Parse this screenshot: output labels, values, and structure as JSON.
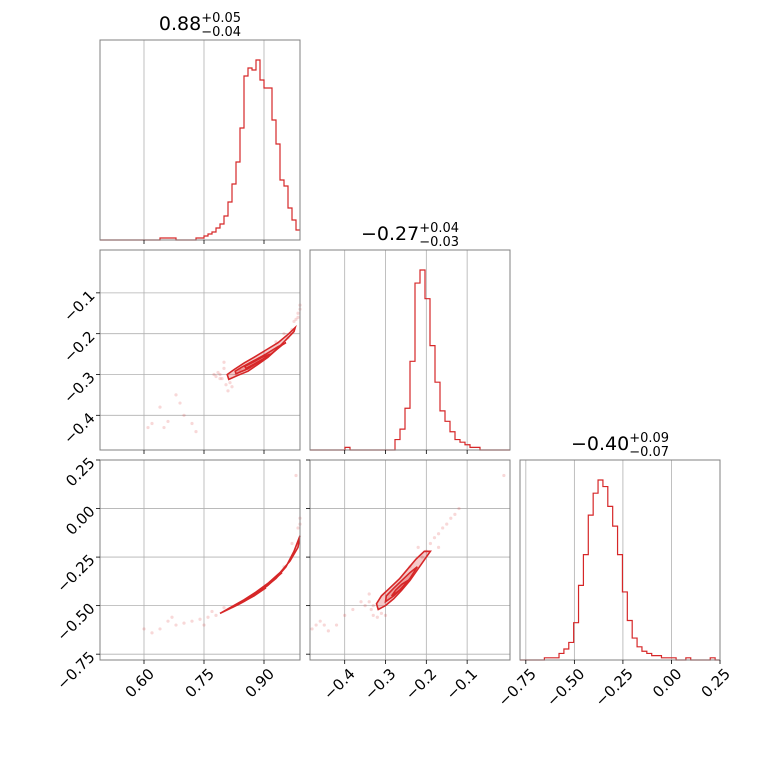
{
  "chart_data": {
    "type": "corner",
    "color": "#d62728",
    "parameters": [
      {
        "range": [
          0.49,
          0.99
        ],
        "ticks": [
          0.6,
          0.75,
          0.9
        ],
        "tick_labels": [
          "0.60",
          "0.75",
          "0.90"
        ],
        "summary": {
          "median": "0.88",
          "plus": "+0.05",
          "minus": "−0.04"
        },
        "hist_edges": [
          0.49,
          0.99
        ],
        "hist_values": [
          0,
          0,
          0,
          0,
          0,
          0,
          0,
          0,
          0,
          0,
          0,
          0,
          0,
          0,
          0,
          1,
          1,
          1,
          1,
          0,
          0,
          0,
          0,
          0,
          1,
          1,
          2,
          3,
          4,
          6,
          8,
          12,
          19,
          28,
          39,
          56,
          82,
          86,
          85,
          90,
          80,
          76,
          76,
          60,
          48,
          30,
          27,
          16,
          10,
          5
        ]
      },
      {
        "range": [
          -0.485,
          0.005
        ],
        "ticks": [
          -0.4,
          -0.3,
          -0.2,
          -0.1
        ],
        "tick_labels": [
          "−0.4",
          "−0.3",
          "−0.2",
          "−0.1"
        ],
        "summary": {
          "median": "−0.27",
          "plus": "+0.04",
          "minus": "−0.03"
        },
        "hist_values": [
          0,
          0,
          0,
          0,
          0,
          0,
          0,
          1,
          0,
          0,
          0,
          0,
          0,
          0,
          0,
          0,
          0,
          4,
          8,
          16,
          34,
          64,
          69,
          58,
          40,
          26,
          15,
          11,
          7,
          4,
          3,
          2,
          1,
          1,
          0,
          0,
          0,
          0,
          0,
          0
        ]
      },
      {
        "range": [
          -0.78,
          0.25
        ],
        "ticks": [
          -0.75,
          -0.5,
          -0.25,
          0.0,
          0.25
        ],
        "tick_labels": [
          "−0.75",
          "−0.50",
          "−0.25",
          "0.00",
          "0.25"
        ],
        "summary": {
          "median": "−0.40",
          "plus": "+0.09",
          "minus": "−0.07"
        },
        "hist_values": [
          0,
          0,
          0,
          0,
          0,
          1,
          1,
          1,
          3,
          5,
          8,
          17,
          34,
          48,
          66,
          76,
          82,
          79,
          70,
          61,
          48,
          31,
          18,
          10,
          6,
          4,
          3,
          2,
          2,
          1,
          1,
          1,
          0,
          0,
          1,
          0,
          0,
          0,
          0,
          1,
          0
        ]
      }
    ],
    "contours": [
      {
        "row": 1,
        "col": 0,
        "levels": [
          [
            [
              0.812,
              -0.312
            ],
            [
              0.835,
              -0.302
            ],
            [
              0.86,
              -0.292
            ],
            [
              0.885,
              -0.275
            ],
            [
              0.91,
              -0.258
            ],
            [
              0.935,
              -0.235
            ],
            [
              0.96,
              -0.21
            ],
            [
              0.975,
              -0.195
            ],
            [
              0.978,
              -0.185
            ],
            [
              0.962,
              -0.2
            ],
            [
              0.935,
              -0.222
            ],
            [
              0.905,
              -0.24
            ],
            [
              0.875,
              -0.258
            ],
            [
              0.85,
              -0.272
            ],
            [
              0.825,
              -0.288
            ],
            [
              0.808,
              -0.3
            ]
          ],
          [
            [
              0.83,
              -0.298
            ],
            [
              0.86,
              -0.286
            ],
            [
              0.89,
              -0.268
            ],
            [
              0.92,
              -0.248
            ],
            [
              0.945,
              -0.228
            ],
            [
              0.955,
              -0.222
            ],
            [
              0.935,
              -0.232
            ],
            [
              0.905,
              -0.25
            ],
            [
              0.875,
              -0.266
            ],
            [
              0.845,
              -0.282
            ],
            [
              0.828,
              -0.292
            ]
          ],
          [
            [
              0.855,
              -0.285
            ],
            [
              0.88,
              -0.272
            ],
            [
              0.905,
              -0.258
            ],
            [
              0.915,
              -0.25
            ],
            [
              0.895,
              -0.258
            ],
            [
              0.868,
              -0.272
            ],
            [
              0.852,
              -0.28
            ]
          ]
        ],
        "scatter": [
          [
            0.79,
            -0.3
          ],
          [
            0.795,
            -0.31
          ],
          [
            0.8,
            -0.285
          ],
          [
            0.805,
            -0.325
          ],
          [
            0.785,
            -0.295
          ],
          [
            0.815,
            -0.32
          ],
          [
            0.82,
            -0.33
          ],
          [
            0.79,
            -0.31
          ],
          [
            0.93,
            -0.22
          ],
          [
            0.95,
            -0.2
          ],
          [
            0.97,
            -0.19
          ],
          [
            0.98,
            -0.165
          ],
          [
            0.985,
            -0.15
          ],
          [
            0.99,
            -0.13
          ],
          [
            0.88,
            -0.27
          ],
          [
            0.84,
            -0.29
          ],
          [
            0.78,
            -0.305
          ],
          [
            0.775,
            -0.3
          ],
          [
            0.7,
            -0.4
          ],
          [
            0.69,
            -0.37
          ],
          [
            0.66,
            -0.415
          ],
          [
            0.62,
            -0.42
          ],
          [
            0.61,
            -0.43
          ],
          [
            0.65,
            -0.43
          ],
          [
            0.72,
            -0.42
          ],
          [
            0.73,
            -0.44
          ],
          [
            0.68,
            -0.35
          ],
          [
            0.64,
            -0.38
          ],
          [
            0.81,
            -0.34
          ],
          [
            0.8,
            -0.27
          ],
          [
            0.83,
            -0.3
          ],
          [
            0.96,
            -0.21
          ],
          [
            0.975,
            -0.17
          ],
          [
            0.99,
            -0.14
          ],
          [
            0.985,
            -0.16
          ]
        ]
      },
      {
        "row": 2,
        "col": 0,
        "levels": [
          [
            [
              0.79,
              -0.54
            ],
            [
              0.82,
              -0.505
            ],
            [
              0.85,
              -0.47
            ],
            [
              0.88,
              -0.43
            ],
            [
              0.91,
              -0.385
            ],
            [
              0.94,
              -0.33
            ],
            [
              0.965,
              -0.27
            ],
            [
              0.985,
              -0.2
            ],
            [
              0.99,
              -0.14
            ],
            [
              0.975,
              -0.22
            ],
            [
              0.955,
              -0.3
            ],
            [
              0.93,
              -0.36
            ],
            [
              0.9,
              -0.41
            ],
            [
              0.87,
              -0.455
            ],
            [
              0.84,
              -0.49
            ],
            [
              0.81,
              -0.52
            ]
          ],
          [
            [
              0.82,
              -0.51
            ],
            [
              0.85,
              -0.478
            ],
            [
              0.88,
              -0.44
            ],
            [
              0.91,
              -0.395
            ],
            [
              0.935,
              -0.345
            ],
            [
              0.945,
              -0.33
            ],
            [
              0.92,
              -0.375
            ],
            [
              0.89,
              -0.42
            ],
            [
              0.86,
              -0.46
            ],
            [
              0.83,
              -0.495
            ]
          ],
          [
            [
              0.85,
              -0.475
            ],
            [
              0.875,
              -0.45
            ],
            [
              0.9,
              -0.415
            ],
            [
              0.905,
              -0.408
            ],
            [
              0.885,
              -0.435
            ],
            [
              0.862,
              -0.46
            ]
          ]
        ],
        "scatter": [
          [
            0.76,
            -0.56
          ],
          [
            0.74,
            -0.57
          ],
          [
            0.72,
            -0.58
          ],
          [
            0.7,
            -0.59
          ],
          [
            0.68,
            -0.6
          ],
          [
            0.66,
            -0.58
          ],
          [
            0.64,
            -0.62
          ],
          [
            0.6,
            -0.62
          ],
          [
            0.78,
            -0.55
          ],
          [
            0.77,
            -0.53
          ],
          [
            0.99,
            -0.08
          ],
          [
            0.985,
            -0.1
          ],
          [
            0.99,
            -0.05
          ],
          [
            0.98,
            0.17
          ],
          [
            0.97,
            -0.18
          ],
          [
            0.95,
            -0.3
          ],
          [
            0.8,
            -0.51
          ],
          [
            0.75,
            -0.6
          ],
          [
            0.62,
            -0.64
          ],
          [
            0.67,
            -0.56
          ]
        ]
      },
      {
        "row": 2,
        "col": 1,
        "levels": [
          [
            [
              -0.318,
              -0.52
            ],
            [
              -0.3,
              -0.5
            ],
            [
              -0.28,
              -0.465
            ],
            [
              -0.26,
              -0.42
            ],
            [
              -0.24,
              -0.37
            ],
            [
              -0.22,
              -0.31
            ],
            [
              -0.2,
              -0.25
            ],
            [
              -0.19,
              -0.22
            ],
            [
              -0.205,
              -0.22
            ],
            [
              -0.225,
              -0.26
            ],
            [
              -0.245,
              -0.31
            ],
            [
              -0.265,
              -0.36
            ],
            [
              -0.29,
              -0.41
            ],
            [
              -0.31,
              -0.45
            ],
            [
              -0.322,
              -0.49
            ]
          ],
          [
            [
              -0.3,
              -0.48
            ],
            [
              -0.28,
              -0.45
            ],
            [
              -0.26,
              -0.41
            ],
            [
              -0.24,
              -0.36
            ],
            [
              -0.225,
              -0.31
            ],
            [
              -0.222,
              -0.3
            ],
            [
              -0.24,
              -0.33
            ],
            [
              -0.26,
              -0.37
            ],
            [
              -0.28,
              -0.41
            ],
            [
              -0.298,
              -0.45
            ]
          ],
          [
            [
              -0.285,
              -0.45
            ],
            [
              -0.265,
              -0.42
            ],
            [
              -0.25,
              -0.385
            ],
            [
              -0.245,
              -0.37
            ],
            [
              -0.26,
              -0.39
            ],
            [
              -0.275,
              -0.42
            ]
          ]
        ],
        "scatter": [
          [
            -0.33,
            -0.5
          ],
          [
            -0.335,
            -0.52
          ],
          [
            -0.33,
            -0.55
          ],
          [
            -0.32,
            -0.56
          ],
          [
            -0.34,
            -0.48
          ],
          [
            -0.31,
            -0.54
          ],
          [
            -0.3,
            -0.55
          ],
          [
            -0.35,
            -0.5
          ],
          [
            -0.36,
            -0.48
          ],
          [
            -0.38,
            -0.52
          ],
          [
            -0.4,
            -0.55
          ],
          [
            -0.42,
            -0.6
          ],
          [
            -0.45,
            -0.6
          ],
          [
            -0.46,
            -0.58
          ],
          [
            -0.44,
            -0.63
          ],
          [
            -0.48,
            -0.62
          ],
          [
            -0.2,
            -0.22
          ],
          [
            -0.19,
            -0.18
          ],
          [
            -0.18,
            -0.15
          ],
          [
            -0.17,
            -0.13
          ],
          [
            -0.16,
            -0.1
          ],
          [
            -0.15,
            -0.08
          ],
          [
            -0.14,
            -0.05
          ],
          [
            -0.13,
            -0.03
          ],
          [
            -0.12,
            0.0
          ],
          [
            -0.22,
            -0.2
          ],
          [
            -0.21,
            -0.25
          ],
          [
            -0.17,
            -0.2
          ],
          [
            -0.01,
            0.17
          ],
          [
            -0.47,
            -0.6
          ],
          [
            -0.34,
            -0.44
          ],
          [
            -0.24,
            -0.3
          ]
        ]
      }
    ]
  }
}
